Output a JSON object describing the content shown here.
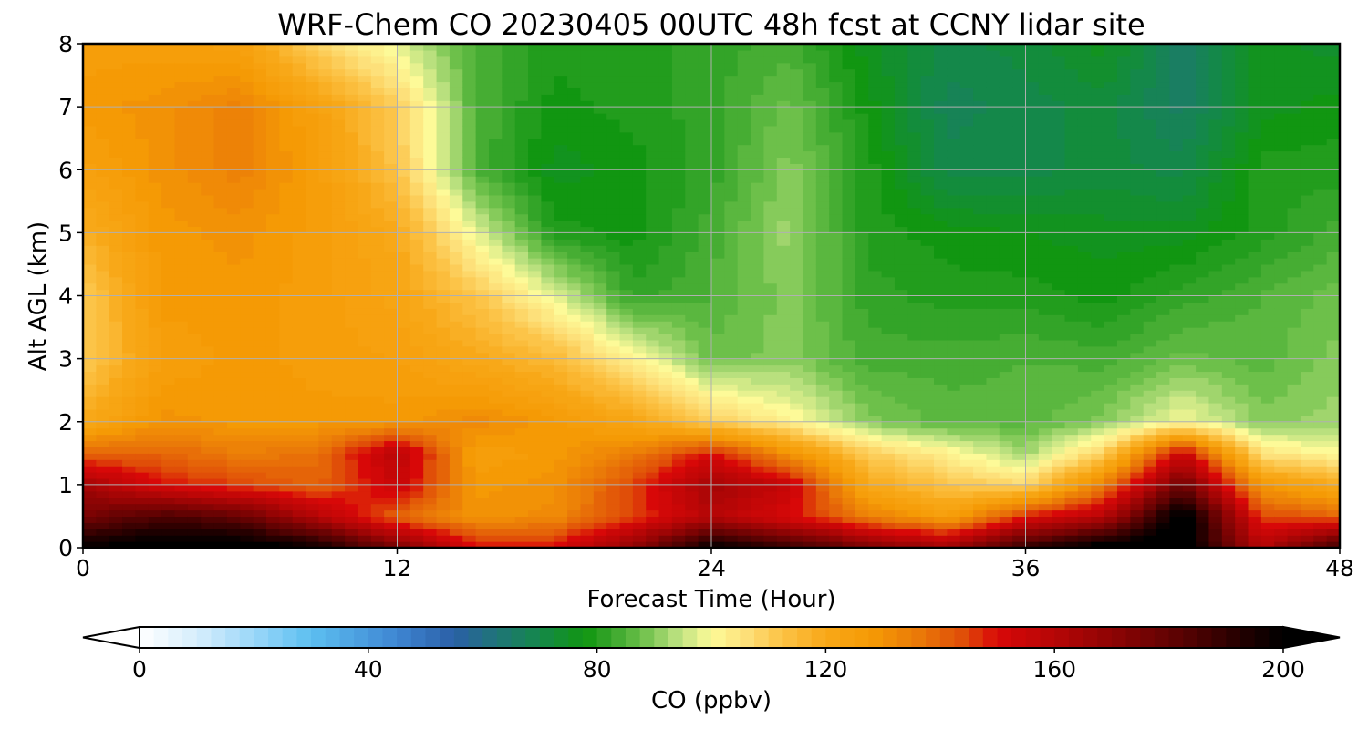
{
  "chart_data": {
    "type": "heatmap",
    "title": "WRF-Chem CO  20230405 00UTC 48h fcst at CCNY lidar site",
    "xlabel": "Forecast Time (Hour)",
    "ylabel": "Alt AGL (km)",
    "xlim": [
      0,
      48
    ],
    "ylim": [
      0,
      8
    ],
    "x_ticks": [
      "0",
      "12",
      "24",
      "36",
      "48"
    ],
    "y_ticks": [
      "0",
      "1",
      "2",
      "3",
      "4",
      "5",
      "6",
      "7",
      "8"
    ],
    "grid": true,
    "x": [
      0,
      3,
      6,
      9,
      12,
      15,
      18,
      21,
      24,
      27,
      30,
      33,
      36,
      39,
      42,
      45,
      48
    ],
    "y": [
      0,
      0.5,
      1,
      1.5,
      2,
      3,
      4,
      5,
      6,
      7,
      8
    ],
    "z": [
      [
        200,
        205,
        205,
        198,
        175,
        150,
        150,
        170,
        200,
        190,
        175,
        165,
        190,
        205,
        205,
        160,
        190
      ],
      [
        175,
        185,
        180,
        160,
        140,
        130,
        132,
        145,
        160,
        150,
        135,
        125,
        148,
        160,
        205,
        145,
        140
      ],
      [
        165,
        150,
        145,
        140,
        155,
        128,
        130,
        145,
        165,
        155,
        120,
        112,
        108,
        135,
        178,
        128,
        120
      ],
      [
        140,
        140,
        135,
        138,
        160,
        125,
        128,
        135,
        150,
        130,
        110,
        102,
        92,
        110,
        155,
        105,
        100
      ],
      [
        120,
        130,
        128,
        128,
        128,
        132,
        128,
        122,
        110,
        102,
        90,
        86,
        86,
        90,
        100,
        90,
        92
      ],
      [
        110,
        125,
        128,
        126,
        125,
        120,
        115,
        102,
        88,
        90,
        84,
        84,
        85,
        84,
        88,
        86,
        90
      ],
      [
        110,
        128,
        128,
        126,
        122,
        112,
        98,
        82,
        85,
        90,
        82,
        80,
        80,
        78,
        82,
        85,
        88
      ],
      [
        118,
        128,
        130,
        126,
        120,
        98,
        80,
        78,
        84,
        92,
        80,
        78,
        77,
        76,
        76,
        80,
        84
      ],
      [
        124,
        130,
        134,
        126,
        112,
        85,
        76,
        78,
        82,
        90,
        80,
        70,
        70,
        72,
        70,
        80,
        80
      ],
      [
        128,
        130,
        134,
        124,
        110,
        85,
        78,
        80,
        82,
        88,
        78,
        68,
        70,
        72,
        66,
        76,
        78
      ],
      [
        126,
        126,
        124,
        108,
        98,
        84,
        80,
        80,
        82,
        84,
        76,
        70,
        72,
        76,
        66,
        76,
        74
      ]
    ],
    "colorbar": {
      "label": "CO  (ppbv)",
      "ticks": [
        "0",
        "40",
        "80",
        "120",
        "160",
        "200"
      ],
      "range": [
        0,
        200
      ],
      "extend": "both",
      "colormap": [
        [
          0,
          "#ffffff"
        ],
        [
          10,
          "#d6eefc"
        ],
        [
          22,
          "#8ed2f8"
        ],
        [
          30,
          "#5cbff0"
        ],
        [
          45,
          "#3f86d3"
        ],
        [
          55,
          "#2a5fa6"
        ],
        [
          62,
          "#20737a"
        ],
        [
          70,
          "#14884a"
        ],
        [
          78,
          "#119611"
        ],
        [
          82,
          "#33a428"
        ],
        [
          88,
          "#6dc04a"
        ],
        [
          94,
          "#b9e07e"
        ],
        [
          100,
          "#fdfa98"
        ],
        [
          106,
          "#fde07a"
        ],
        [
          112,
          "#fcc448"
        ],
        [
          120,
          "#f8a818"
        ],
        [
          128,
          "#f59a05"
        ],
        [
          136,
          "#ea7a08"
        ],
        [
          144,
          "#e04e08"
        ],
        [
          150,
          "#d80808"
        ],
        [
          160,
          "#b60606"
        ],
        [
          170,
          "#8e0404"
        ],
        [
          182,
          "#5a0202"
        ],
        [
          192,
          "#260000"
        ],
        [
          200,
          "#000000"
        ]
      ]
    }
  }
}
